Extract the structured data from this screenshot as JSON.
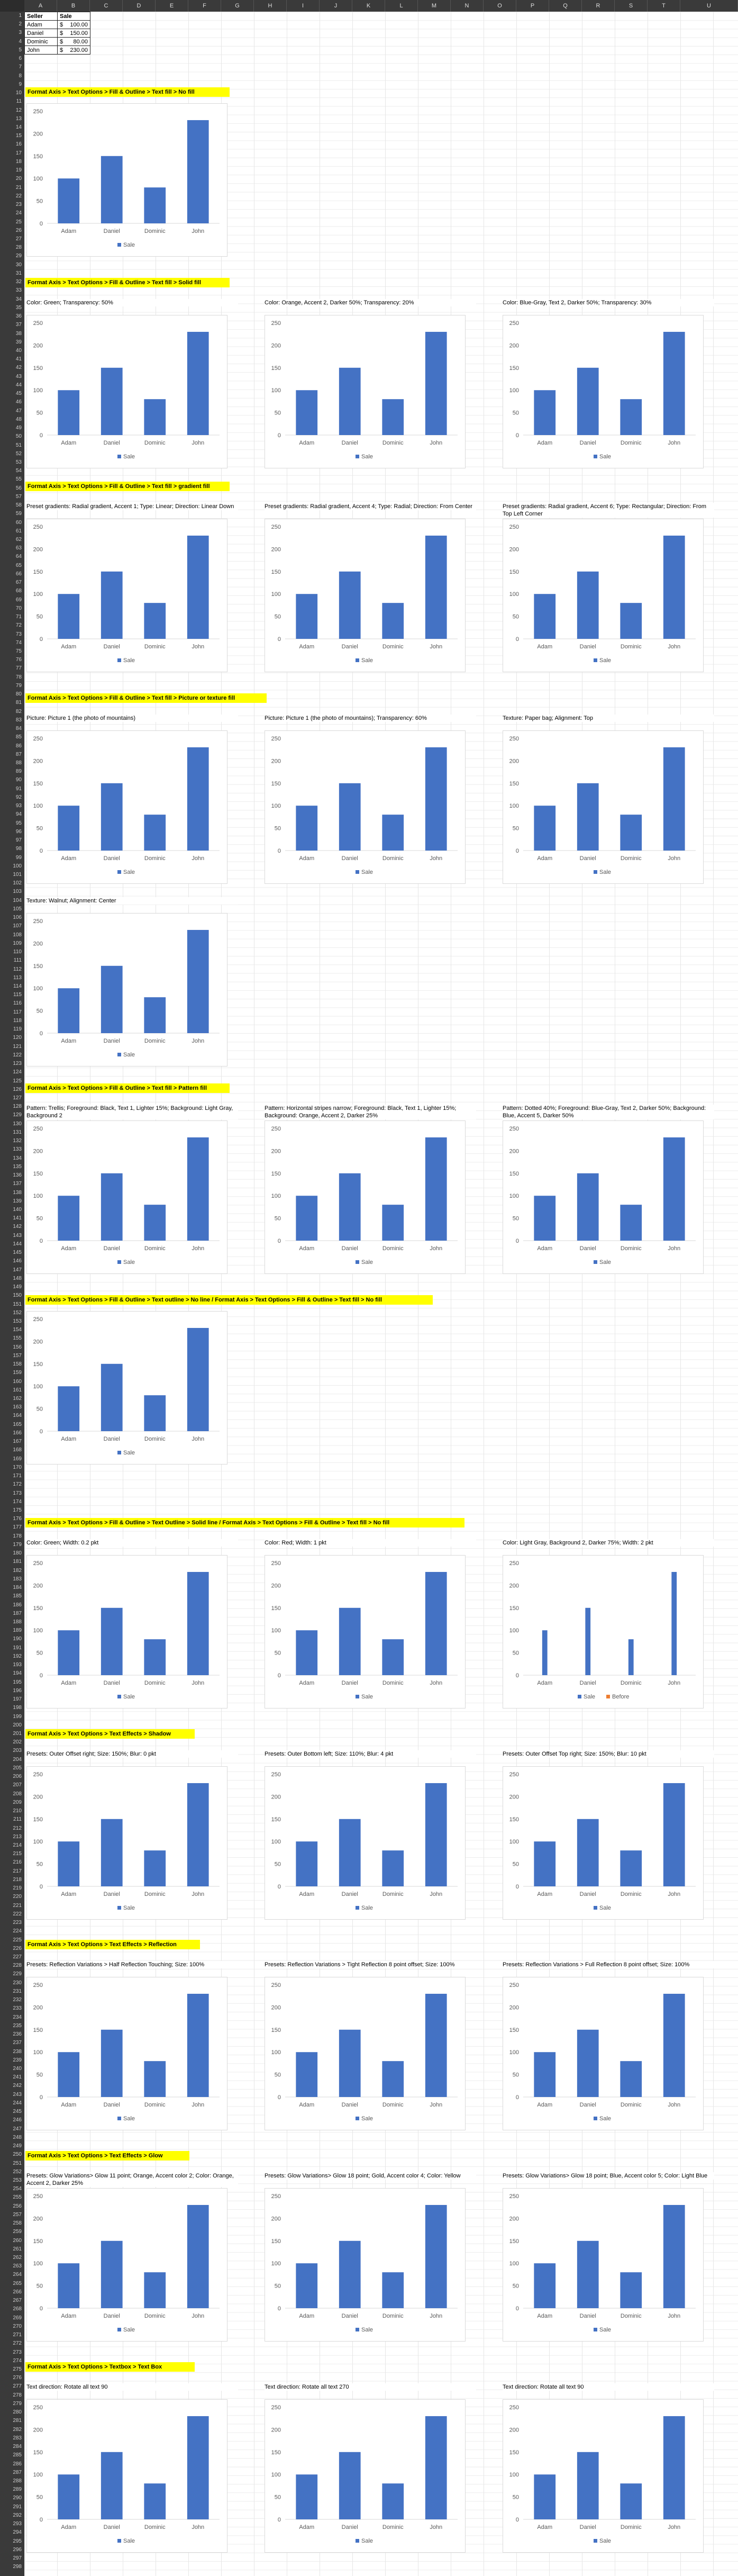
{
  "table": {
    "headers": [
      "Seller",
      "Sale"
    ],
    "currency": "$",
    "rows": [
      {
        "seller": "Adam",
        "sale": "100.00"
      },
      {
        "seller": "Daniel",
        "sale": "150.00"
      },
      {
        "seller": "Dominic",
        "sale": "80.00"
      },
      {
        "seller": "John",
        "sale": "230.00"
      }
    ]
  },
  "columns": [
    "A",
    "B",
    "C",
    "D",
    "E",
    "F",
    "G",
    "H",
    "I",
    "J",
    "K",
    "L",
    "M",
    "N",
    "O",
    "P",
    "Q",
    "R",
    "S",
    "T",
    "U"
  ],
  "legend_labels": {
    "sale": "Sale",
    "before": "Before"
  },
  "colors": {
    "bar": "#4472c4",
    "highlight": "#ffff00",
    "grid": "#e6e6e6",
    "before": "#ed7d31"
  },
  "chart_data": {
    "type": "bar",
    "categories": [
      "Adam",
      "Daniel",
      "Dominic",
      "John"
    ],
    "values": [
      100,
      150,
      80,
      230
    ],
    "ylim": [
      0,
      250
    ],
    "yticks": [
      0,
      50,
      100,
      150,
      200,
      250
    ],
    "legend": "bottom"
  },
  "sections": [
    {
      "title": "Format Axis > Text Options > Fill & Outline > Text fill > No fill",
      "charts": [
        {
          "caption": "",
          "variant": "normal"
        }
      ]
    },
    {
      "title": "Format Axis > Text Options > Fill & Outline > Text fill > Solid fill",
      "charts": [
        {
          "caption": "Color: Green; Transparency: 50%",
          "variant": "normal"
        },
        {
          "caption": "Color: Orange, Accent 2, Darker 50%; Transparency: 20%",
          "variant": "normal"
        },
        {
          "caption": "Color: Blue-Gray, Text 2, Darker 50%; Transparency: 30%",
          "variant": "normal"
        }
      ]
    },
    {
      "title": "Format Axis > Text Options > Fill & Outline > Text fill > gradient fill",
      "charts": [
        {
          "caption": "Preset gradients: Radial gradient, Accent 1; Type: Linear; Direction: Linear Down",
          "variant": "normal"
        },
        {
          "caption": "Preset gradients: Radial gradient, Accent 4; Type: Radial; Direction: From Center",
          "variant": "normal"
        },
        {
          "caption": "Preset gradients: Radial gradient, Accent 6; Type: Rectangular; Direction: From Top Left Corner",
          "variant": "normal"
        }
      ]
    },
    {
      "title": "Format Axis > Text Options > Fill & Outline > Text fill > Picture or texture fill",
      "charts": [
        {
          "caption": "Picture: Picture 1 (the photo of mountains)",
          "variant": "normal"
        },
        {
          "caption": "Picture: Picture 1 (the photo of mountains); Transparency: 60%",
          "variant": "normal"
        },
        {
          "caption": "Texture: Paper bag; Alignment: Top",
          "variant": "normal"
        },
        {
          "caption": "Texture: Walnut; Alignment: Center",
          "variant": "normal"
        }
      ]
    },
    {
      "title": "Format Axis > Text Options > Fill & Outline > Text fill > Pattern fill",
      "charts": [
        {
          "caption": "Pattern: Trellis; Foreground: Black, Text 1, Lighter 15%; Background: Light Gray, Background 2",
          "variant": "normal"
        },
        {
          "caption": "Pattern: Horizontal stripes narrow; Foreground: Black, Text 1, Lighter 15%; Background: Orange, Accent 2, Darker 25%",
          "variant": "normal"
        },
        {
          "caption": "Pattern: Dotted 40%; Foreground: Blue-Gray, Text 2, Darker 50%; Background: Blue, Accent 5, Darker 50%",
          "variant": "normal"
        }
      ]
    },
    {
      "title": "Format Axis > Text Options > Fill & Outline > Text outline > No line / Format Axis > Text Options > Fill & Outline > Text fill > No fill",
      "charts": [
        {
          "caption": "",
          "variant": "normal"
        }
      ]
    },
    {
      "title": "Format Axis > Text Options > Fill & Outline > Text Outline > Solid line / Format Axis > Text Options > Fill & Outline > Text fill > No fill",
      "charts": [
        {
          "caption": "Color: Green; Width: 0.2 pkt",
          "variant": "normal"
        },
        {
          "caption": "Color: Red; Width: 1 pkt",
          "variant": "normal"
        },
        {
          "caption": "Color: Light Gray, Background 2, Darker 75%; Width: 2 pkt",
          "variant": "thin"
        }
      ]
    },
    {
      "title": "Format Axis > Text Options > Text Effects > Shadow",
      "charts": [
        {
          "caption": "Presets: Outer Offset right; Size: 150%; Blur: 0 pkt",
          "variant": "normal"
        },
        {
          "caption": "Presets: Outer Bottom left; Size: 110%; Blur: 4 pkt",
          "variant": "normal"
        },
        {
          "caption": "Presets: Outer Offset Top right; Size: 150%; Blur: 10 pkt",
          "variant": "normal"
        }
      ]
    },
    {
      "title": "Format Axis > Text Options > Text Effects > Reflection",
      "charts": [
        {
          "caption": "Presets: Reflection Variations > Half Reflection Touching; Size: 100%",
          "variant": "normal"
        },
        {
          "caption": "Presets: Reflection Variations > Tight Reflection 8 point offset; Size: 100%",
          "variant": "normal"
        },
        {
          "caption": "Presets: Reflection Variations > Full Reflection 8 point offset; Size: 100%",
          "variant": "normal"
        }
      ]
    },
    {
      "title": "Format Axis > Text Options > Text Effects > Glow",
      "charts": [
        {
          "caption": "Presets: Glow Variations> Glow 11 point; Orange, Accent color 2; Color: Orange, Accent 2, Darker 25%",
          "variant": "normal"
        },
        {
          "caption": "Presets: Glow Variations> Glow 18 point; Gold, Accent color 4; Color: Yellow",
          "variant": "normal"
        },
        {
          "caption": "Presets: Glow Variations> Glow 18 point; Blue, Accent color 5; Color: Light Blue",
          "variant": "normal"
        }
      ]
    },
    {
      "title": "Format Axis > Text Options > Textbox > Text Box",
      "charts": [
        {
          "caption": "Text direction: Rotate all text 90",
          "variant": "normal"
        },
        {
          "caption": "Text direction: Rotate all text 270",
          "variant": "normal"
        },
        {
          "caption": "Text direction: Rotate all text 90",
          "variant": "normal"
        }
      ]
    }
  ]
}
